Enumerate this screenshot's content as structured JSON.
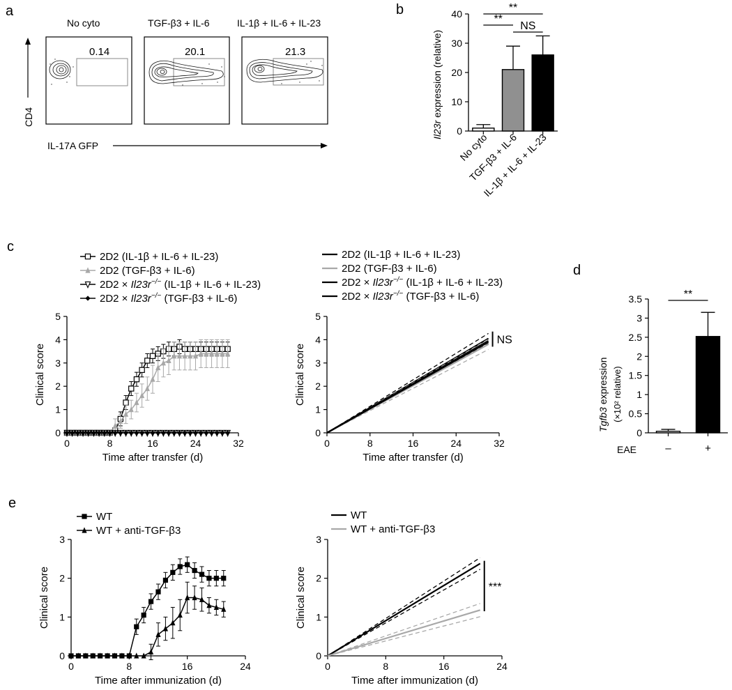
{
  "panel_letters": {
    "a": "a",
    "b": "b",
    "c": "c",
    "d": "d",
    "e": "e"
  },
  "colors": {
    "black": "#000000",
    "gray": "#909090",
    "light_gray": "#a8a8a8",
    "white": "#ffffff"
  },
  "chart_data": [
    {
      "id": "a",
      "type": "flow-cytometry-contour",
      "y_axis_label": "CD4",
      "x_axis_label": "IL-17A GFP",
      "plots": [
        {
          "title": "No cyto",
          "gate_percent": "0.14"
        },
        {
          "title": "TGF-β3 + IL-6",
          "gate_percent": "20.1"
        },
        {
          "title": "IL-1β + IL-6 + IL-23",
          "gate_percent": "21.3"
        }
      ]
    },
    {
      "id": "b",
      "type": "bar",
      "ylabel_italic": "Il23r",
      "ylabel_rest": " expression (relative)",
      "ylim": [
        0,
        40
      ],
      "yticks": [
        0,
        10,
        20,
        30,
        40
      ],
      "categories": [
        "No cyto",
        "TGF-β3 + IL-6",
        "IL-1β + IL-6 + IL-23"
      ],
      "values": [
        1,
        21,
        26
      ],
      "errors": [
        1.2,
        8,
        6.5
      ],
      "bar_colors": [
        "#ffffff",
        "#909090",
        "#000000"
      ],
      "significance": [
        {
          "from": 0,
          "to": 2,
          "label": "**"
        },
        {
          "from": 0,
          "to": 1,
          "label": "**"
        },
        {
          "from": 1,
          "to": 2,
          "label": "NS"
        }
      ]
    },
    {
      "id": "c-left",
      "type": "line",
      "xlabel": "Time after transfer (d)",
      "ylabel": "Clinical score",
      "xlim": [
        0,
        32
      ],
      "ylim": [
        0,
        5
      ],
      "xticks": [
        0,
        8,
        16,
        24,
        32
      ],
      "yticks": [
        0,
        1,
        2,
        3,
        4,
        5
      ],
      "legend": [
        {
          "prefix": "2D2 ",
          "italic": "",
          "suffix": "(IL-1β + IL-6 + IL-23)",
          "marker": "square-open",
          "color": "#000000"
        },
        {
          "prefix": "2D2 ",
          "italic": "",
          "suffix": "(TGF-β3 + IL-6)",
          "marker": "triangle",
          "color": "#a8a8a8"
        },
        {
          "prefix": "2D2 × ",
          "italic": "Il23r",
          "sup": "−/−",
          "suffix": " (IL-1β + IL-6 + IL-23)",
          "marker": "triangle-down-open",
          "color": "#000000"
        },
        {
          "prefix": "2D2 × ",
          "italic": "Il23r",
          "sup": "−/−",
          "suffix": " (TGF-β3 + IL-6)",
          "marker": "diamond",
          "color": "#000000"
        }
      ],
      "series": [
        {
          "name": "2D2 (IL-1β + IL-6 + IL-23)",
          "color": "#000000",
          "marker": "square-open",
          "x": [
            0,
            1,
            2,
            3,
            4,
            5,
            6,
            7,
            8,
            9,
            10,
            11,
            12,
            13,
            14,
            15,
            16,
            17,
            18,
            19,
            20,
            21,
            22,
            23,
            24,
            25,
            26,
            27,
            28,
            29,
            30
          ],
          "y": [
            0,
            0,
            0,
            0,
            0,
            0,
            0,
            0,
            0,
            0.1,
            0.6,
            1.3,
            1.9,
            2.3,
            2.7,
            3.1,
            3.3,
            3.4,
            3.5,
            3.6,
            3.6,
            3.7,
            3.6,
            3.6,
            3.6,
            3.6,
            3.6,
            3.6,
            3.6,
            3.6,
            3.6
          ],
          "err": [
            0,
            0,
            0,
            0,
            0,
            0,
            0,
            0,
            0,
            0.1,
            0.3,
            0.3,
            0.3,
            0.3,
            0.3,
            0.3,
            0.3,
            0.3,
            0.3,
            0.3,
            0.3,
            0.3,
            0.3,
            0.3,
            0.3,
            0.3,
            0.3,
            0.3,
            0.3,
            0.3,
            0.3
          ]
        },
        {
          "name": "2D2 (TGF-β3 + IL-6)",
          "color": "#a8a8a8",
          "marker": "triangle",
          "x": [
            0,
            1,
            2,
            3,
            4,
            5,
            6,
            7,
            8,
            9,
            10,
            11,
            12,
            13,
            14,
            15,
            16,
            17,
            18,
            19,
            20,
            21,
            22,
            23,
            24,
            25,
            26,
            27,
            28,
            29,
            30
          ],
          "y": [
            0,
            0,
            0,
            0,
            0,
            0,
            0,
            0,
            0,
            0.3,
            0.5,
            0.8,
            1.0,
            1.3,
            1.6,
            1.9,
            2.3,
            2.8,
            3.0,
            3.1,
            3.3,
            3.3,
            3.3,
            3.3,
            3.3,
            3.4,
            3.4,
            3.4,
            3.4,
            3.4,
            3.4
          ],
          "err": [
            0,
            0,
            0,
            0,
            0,
            0,
            0,
            0,
            0,
            0.3,
            0.3,
            0.4,
            0.4,
            0.4,
            0.5,
            0.5,
            0.6,
            0.6,
            0.6,
            0.6,
            0.6,
            0.6,
            0.6,
            0.6,
            0.6,
            0.6,
            0.6,
            0.6,
            0.6,
            0.6,
            0.6
          ]
        },
        {
          "name": "2D2 × Il23r−/− (IL-1β + IL-6 + IL-23)",
          "color": "#000000",
          "marker": "triangle-down-open",
          "x": [
            0,
            1,
            2,
            3,
            4,
            5,
            6,
            7,
            8,
            9,
            10,
            11,
            12,
            13,
            14,
            15,
            16,
            17,
            18,
            19,
            20,
            21,
            22,
            23,
            24,
            25,
            26,
            27,
            28,
            29,
            30
          ],
          "y": [
            0,
            0,
            0,
            0,
            0,
            0,
            0,
            0,
            0,
            0,
            0,
            0,
            0,
            0,
            0,
            0,
            0,
            0,
            0,
            0,
            0,
            0,
            0,
            0,
            0,
            0,
            0,
            0,
            0,
            0,
            0
          ],
          "err": []
        },
        {
          "name": "2D2 × Il23r−/− (TGF-β3 + IL-6)",
          "color": "#000000",
          "marker": "diamond",
          "x": [
            0,
            1,
            2,
            3,
            4,
            5,
            6,
            7,
            8,
            9,
            10,
            11,
            12,
            13,
            14,
            15,
            16,
            17,
            18,
            19,
            20,
            21,
            22,
            23,
            24,
            25,
            26,
            27,
            28,
            29,
            30
          ],
          "y": [
            0,
            0,
            0,
            0,
            0,
            0,
            0,
            0,
            0,
            0,
            0,
            0,
            0,
            0,
            0,
            0,
            0,
            0,
            0,
            0,
            0,
            0,
            0,
            0,
            0,
            0,
            0,
            0,
            0,
            0,
            0
          ],
          "err": []
        }
      ]
    },
    {
      "id": "c-right",
      "type": "line",
      "xlabel": "Time after transfer (d)",
      "ylabel": "Clinical score",
      "xlim": [
        0,
        32
      ],
      "ylim": [
        0,
        5
      ],
      "xticks": [
        0,
        8,
        16,
        24,
        32
      ],
      "yticks": [
        0,
        1,
        2,
        3,
        4,
        5
      ],
      "annotation": "NS",
      "legend": [
        {
          "prefix": "2D2 ",
          "italic": "",
          "suffix": "(IL-1β + IL-6 + IL-23)",
          "color": "#000000"
        },
        {
          "prefix": "2D2 ",
          "italic": "",
          "suffix": "(TGF-β3 + IL-6)",
          "color": "#a8a8a8"
        },
        {
          "prefix": "2D2 × ",
          "italic": "Il23r",
          "sup": "−/−",
          "suffix": " (IL-1β + IL-6 + IL-23)",
          "color": "#000000"
        },
        {
          "prefix": "2D2 × ",
          "italic": "Il23r",
          "sup": "−/−",
          "suffix": " (TGF-β3 + IL-6)",
          "color": "#000000"
        }
      ],
      "series": [
        {
          "name": "2D2 (IL-1β + IL-6 + IL-23)",
          "color": "#000000",
          "x": [
            0,
            30
          ],
          "y": [
            0,
            4.05
          ],
          "band": [
            0,
            0.22
          ]
        },
        {
          "name": "2D2 (TGF-β3 + IL-6)",
          "color": "#a8a8a8",
          "x": [
            0,
            30
          ],
          "y": [
            0,
            3.8
          ],
          "band": [
            0,
            0.22
          ]
        },
        {
          "name": "2D2 × Il23r−/− (IL-1β + IL-6 + IL-23)",
          "color": "#000000",
          "x": [
            0,
            30
          ],
          "y": [
            0,
            3.95
          ],
          "band": []
        },
        {
          "name": "2D2 × Il23r−/− (TGF-β3 + IL-6)",
          "color": "#000000",
          "x": [
            0,
            30
          ],
          "y": [
            0,
            3.9
          ],
          "band": []
        }
      ]
    },
    {
      "id": "d",
      "type": "bar",
      "ylabel_italic": "Tgfb3",
      "ylabel_rest": " expression",
      "ylabel_line2": "(×10² relative)",
      "xlabel_title": "EAE",
      "ylim": [
        0,
        3.5
      ],
      "yticks": [
        "0",
        "0.5",
        "1",
        "1.5",
        "2",
        "2.5",
        "3",
        "3.5"
      ],
      "categories": [
        "–",
        "+"
      ],
      "values": [
        0.04,
        2.52
      ],
      "errors": [
        0.05,
        0.63
      ],
      "bar_colors": [
        "#ffffff",
        "#000000"
      ],
      "significance": [
        {
          "from": 0,
          "to": 1,
          "label": "**"
        }
      ]
    },
    {
      "id": "e-left",
      "type": "line",
      "xlabel": "Time after immunization (d)",
      "ylabel": "Clinical score",
      "xlim": [
        0,
        24
      ],
      "ylim": [
        0,
        3
      ],
      "xticks": [
        0,
        8,
        16,
        24
      ],
      "yticks": [
        0,
        1,
        2,
        3
      ],
      "legend": [
        {
          "prefix": "WT",
          "italic": "",
          "suffix": "",
          "marker": "square",
          "color": "#000000"
        },
        {
          "prefix": "WT + anti-TGF-β3",
          "italic": "",
          "suffix": "",
          "marker": "triangle",
          "color": "#000000"
        }
      ],
      "series": [
        {
          "name": "WT",
          "color": "#000000",
          "marker": "square",
          "x": [
            0,
            1,
            2,
            3,
            4,
            5,
            6,
            7,
            8,
            9,
            10,
            11,
            12,
            13,
            14,
            15,
            16,
            17,
            18,
            19,
            20,
            21
          ],
          "y": [
            0,
            0,
            0,
            0,
            0,
            0,
            0,
            0,
            0,
            0.75,
            1.05,
            1.4,
            1.65,
            1.95,
            2.15,
            2.3,
            2.35,
            2.2,
            2.1,
            2.0,
            2.0,
            2.0
          ],
          "err": [
            0,
            0,
            0,
            0,
            0,
            0,
            0,
            0,
            0,
            0.2,
            0.2,
            0.2,
            0.2,
            0.2,
            0.2,
            0.2,
            0.2,
            0.2,
            0.2,
            0.2,
            0.2,
            0.2
          ]
        },
        {
          "name": "WT + anti-TGF-β3",
          "color": "#000000",
          "marker": "triangle",
          "x": [
            0,
            1,
            2,
            3,
            4,
            5,
            6,
            7,
            8,
            9,
            10,
            11,
            12,
            13,
            14,
            15,
            16,
            17,
            18,
            19,
            20,
            21
          ],
          "y": [
            0,
            0,
            0,
            0,
            0,
            0,
            0,
            0,
            0,
            0,
            0,
            0.1,
            0.55,
            0.7,
            0.85,
            1.05,
            1.5,
            1.5,
            1.45,
            1.3,
            1.25,
            1.2
          ],
          "err": [
            0,
            0,
            0,
            0,
            0,
            0,
            0,
            0,
            0,
            0,
            0,
            0.2,
            0.3,
            0.3,
            0.4,
            0.4,
            0.4,
            0.3,
            0.3,
            0.2,
            0.2,
            0.2
          ]
        }
      ]
    },
    {
      "id": "e-right",
      "type": "line",
      "xlabel": "Time after immunization (d)",
      "ylabel": "Clinical score",
      "xlim": [
        0,
        24
      ],
      "ylim": [
        0,
        3
      ],
      "xticks": [
        0,
        8,
        16,
        24
      ],
      "yticks": [
        0,
        1,
        2,
        3
      ],
      "annotation": "***",
      "legend": [
        {
          "prefix": "WT",
          "italic": "",
          "suffix": "",
          "color": "#000000"
        },
        {
          "prefix": "WT + anti-TGF-β3",
          "italic": "",
          "suffix": "",
          "color": "#a8a8a8"
        }
      ],
      "series": [
        {
          "name": "WT",
          "color": "#000000",
          "x": [
            0,
            21
          ],
          "y": [
            0,
            2.38
          ],
          "band": [
            0,
            0.15
          ]
        },
        {
          "name": "WT + anti-TGF-β3",
          "color": "#a8a8a8",
          "x": [
            0,
            21
          ],
          "y": [
            0,
            1.18
          ],
          "band": [
            0,
            0.17
          ]
        }
      ]
    }
  ]
}
